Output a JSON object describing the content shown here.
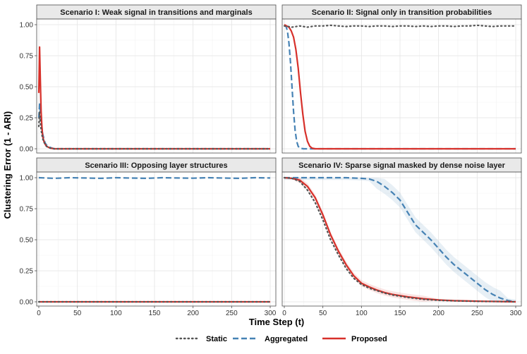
{
  "chart_data": {
    "type": "line",
    "title": "",
    "xlabel": "Time Step (t)",
    "ylabel": "Clustering Error (1 - ARI)",
    "xlim": [
      0,
      300
    ],
    "ylim": [
      0,
      1
    ],
    "xticks": [
      "0",
      "50",
      "100",
      "150",
      "200",
      "250",
      "300"
    ],
    "yticks": [
      "0.00",
      "0.25",
      "0.50",
      "0.75",
      "1.00"
    ],
    "grid": true,
    "legend_position": "bottom",
    "legend": [
      {
        "name": "Static",
        "color": "#555555",
        "style": "dotted"
      },
      {
        "name": "Aggregated",
        "color": "#4682B4",
        "style": "dashed"
      },
      {
        "name": "Proposed",
        "color": "#D7302A",
        "style": "solid"
      }
    ],
    "panels": [
      {
        "title": "Scenario I: Weak signal in transitions and marginals",
        "series": [
          {
            "name": "Static",
            "x": [
              0,
              1,
              2,
              3,
              5,
              8,
              10,
              15,
              20,
              30,
              300
            ],
            "y": [
              0.18,
              0.3,
              0.22,
              0.15,
              0.08,
              0.04,
              0.02,
              0.005,
              0.0,
              0.0,
              0.0
            ]
          },
          {
            "name": "Aggregated",
            "x": [
              0,
              1,
              2,
              3,
              5,
              8,
              10,
              15,
              20,
              30,
              300
            ],
            "y": [
              0.25,
              0.36,
              0.3,
              0.22,
              0.12,
              0.05,
              0.03,
              0.01,
              0.0,
              0.0,
              0.0
            ]
          },
          {
            "name": "Proposed",
            "x": [
              0,
              1,
              2,
              3,
              4,
              5,
              7,
              10,
              15,
              20,
              300
            ],
            "y": [
              0.45,
              0.82,
              0.55,
              0.3,
              0.18,
              0.1,
              0.05,
              0.02,
              0.005,
              0.0,
              0.0
            ]
          }
        ]
      },
      {
        "title": "Scenario II: Signal only in transition probabilities",
        "series": [
          {
            "name": "Static",
            "x": [
              0,
              10,
              20,
              30,
              40,
              50,
              60,
              70,
              80,
              90,
              100,
              110,
              120,
              130,
              140,
              150,
              160,
              170,
              180,
              190,
              200,
              210,
              220,
              230,
              240,
              250,
              260,
              270,
              280,
              290,
              300
            ],
            "y": [
              0.99,
              0.98,
              0.99,
              0.98,
              0.99,
              0.99,
              0.995,
              0.99,
              0.985,
              0.99,
              0.99,
              0.985,
              0.99,
              0.99,
              0.985,
              0.99,
              0.99,
              0.985,
              0.99,
              0.985,
              0.99,
              0.99,
              0.985,
              0.99,
              0.99,
              0.995,
              0.99,
              0.985,
              0.99,
              0.99,
              0.99
            ]
          },
          {
            "name": "Aggregated",
            "x": [
              0,
              2,
              4,
              6,
              8,
              10,
              12,
              14,
              16,
              18,
              20,
              25,
              300
            ],
            "y": [
              0.99,
              0.99,
              0.95,
              0.85,
              0.7,
              0.5,
              0.3,
              0.15,
              0.06,
              0.02,
              0.005,
              0.0,
              0.0
            ]
          },
          {
            "name": "Proposed",
            "x": [
              0,
              3,
              6,
              9,
              12,
              15,
              18,
              21,
              24,
              27,
              30,
              33,
              36,
              40,
              300
            ],
            "y": [
              1.0,
              0.99,
              0.98,
              0.95,
              0.9,
              0.8,
              0.65,
              0.45,
              0.28,
              0.14,
              0.06,
              0.02,
              0.005,
              0.0,
              0.0
            ]
          }
        ]
      },
      {
        "title": "Scenario III: Opposing layer structures",
        "series": [
          {
            "name": "Static",
            "x": [
              0,
              300
            ],
            "y": [
              0.0,
              0.0
            ]
          },
          {
            "name": "Aggregated",
            "x": [
              0,
              20,
              40,
              60,
              80,
              100,
              120,
              140,
              160,
              180,
              200,
              220,
              240,
              260,
              280,
              300
            ],
            "y": [
              1.0,
              0.995,
              1.0,
              0.998,
              0.995,
              1.0,
              0.997,
              0.995,
              1.0,
              0.998,
              0.996,
              1.0,
              0.997,
              0.995,
              1.0,
              0.998
            ]
          },
          {
            "name": "Proposed",
            "x": [
              0,
              300
            ],
            "y": [
              0.0,
              0.0
            ]
          }
        ]
      },
      {
        "title": "Scenario IV: Sparse signal masked by dense noise layer",
        "series": [
          {
            "name": "Static",
            "x": [
              0,
              10,
              20,
              30,
              40,
              50,
              60,
              70,
              80,
              90,
              100,
              110,
              120,
              130,
              140,
              160,
              180,
              200,
              220,
              240,
              260,
              280,
              300
            ],
            "y": [
              1.0,
              0.995,
              0.97,
              0.9,
              0.8,
              0.66,
              0.5,
              0.38,
              0.27,
              0.19,
              0.14,
              0.11,
              0.09,
              0.07,
              0.055,
              0.035,
              0.02,
              0.012,
              0.008,
              0.005,
              0.003,
              0.002,
              0.0
            ]
          },
          {
            "name": "Aggregated",
            "x": [
              0,
              20,
              40,
              60,
              80,
              100,
              110,
              120,
              130,
              140,
              150,
              160,
              170,
              180,
              190,
              200,
              210,
              220,
              230,
              240,
              250,
              260,
              270,
              280,
              290,
              300
            ],
            "y": [
              1.0,
              1.0,
              1.0,
              1.0,
              1.0,
              0.995,
              0.99,
              0.97,
              0.93,
              0.88,
              0.82,
              0.72,
              0.62,
              0.56,
              0.5,
              0.43,
              0.36,
              0.3,
              0.25,
              0.2,
              0.15,
              0.1,
              0.06,
              0.03,
              0.01,
              0.0
            ]
          },
          {
            "name": "Proposed",
            "x": [
              0,
              10,
              20,
              30,
              40,
              50,
              60,
              70,
              80,
              90,
              100,
              110,
              120,
              130,
              140,
              160,
              180,
              200,
              220,
              240,
              260,
              280,
              300
            ],
            "y": [
              1.0,
              0.995,
              0.98,
              0.93,
              0.84,
              0.7,
              0.54,
              0.41,
              0.3,
              0.21,
              0.15,
              0.12,
              0.095,
              0.075,
              0.06,
              0.04,
              0.025,
              0.015,
              0.009,
              0.006,
              0.004,
              0.002,
              0.0
            ]
          }
        ]
      }
    ]
  }
}
